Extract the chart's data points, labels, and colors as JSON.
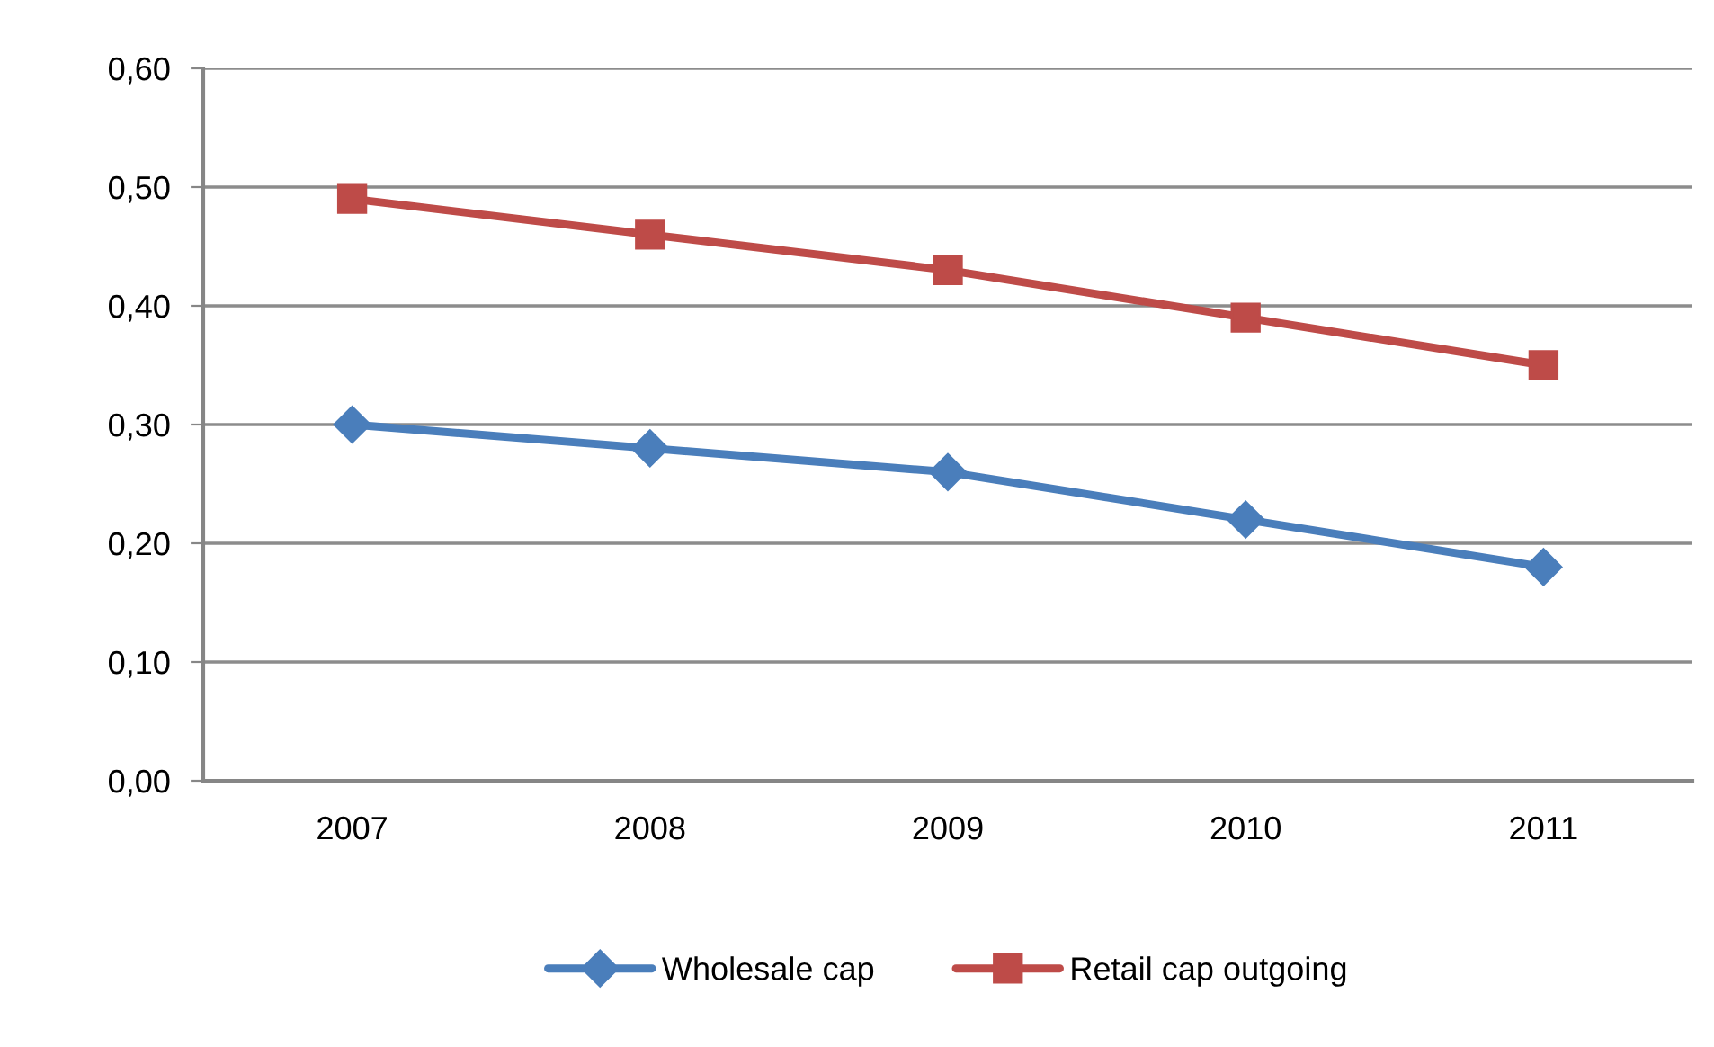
{
  "chart_data": {
    "type": "line",
    "categories": [
      "2007",
      "2008",
      "2009",
      "2010",
      "2011"
    ],
    "series": [
      {
        "name": "Wholesale cap",
        "color": "#4a7ebb",
        "marker": "diamond",
        "values": [
          0.3,
          0.28,
          0.26,
          0.22,
          0.18
        ]
      },
      {
        "name": "Retail cap outgoing",
        "color": "#be4b48",
        "marker": "square",
        "values": [
          0.49,
          0.46,
          0.43,
          0.39,
          0.35
        ]
      }
    ],
    "ylim": [
      0,
      0.6
    ],
    "yticks": [
      {
        "value": 0,
        "label": "0,00"
      },
      {
        "value": 0.1,
        "label": "0,10"
      },
      {
        "value": 0.2,
        "label": "0,20"
      },
      {
        "value": 0.3,
        "label": "0,30"
      },
      {
        "value": 0.4,
        "label": "0,40"
      },
      {
        "value": 0.5,
        "label": "0,50"
      },
      {
        "value": 0.6,
        "label": "0,60"
      }
    ],
    "grid": "y",
    "legend": "bottom",
    "line_style": "solid"
  }
}
